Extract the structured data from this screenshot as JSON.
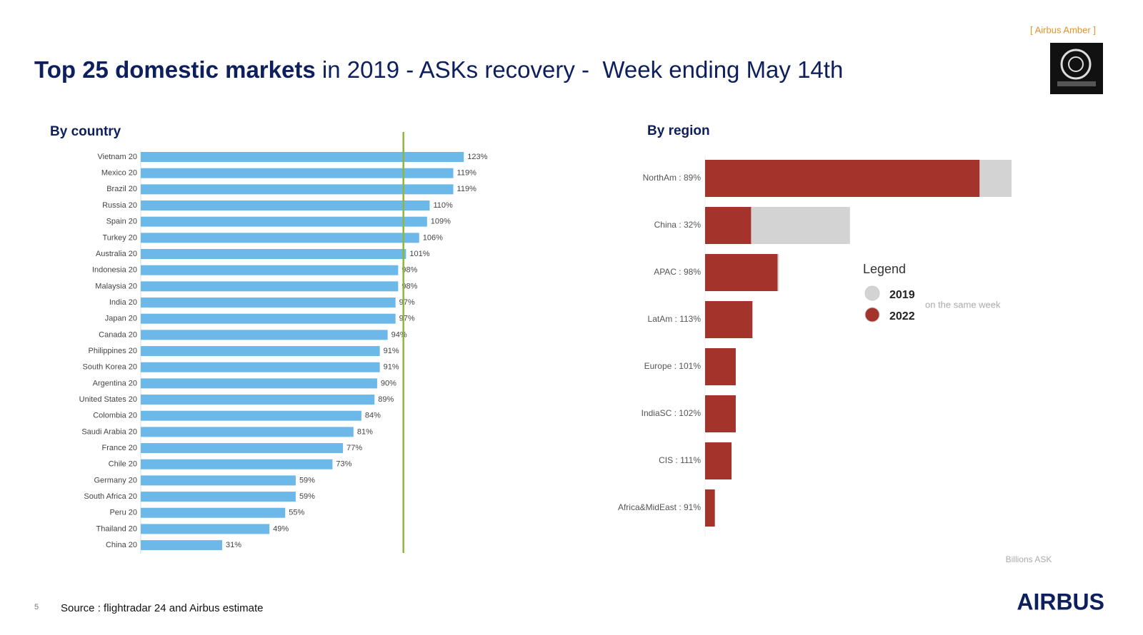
{
  "header": {
    "title_bold": "Top 25 domestic markets",
    "title_rest": " in 2019 - ASKs recovery -  Week ending May 14th",
    "tag": "[ Airbus Amber ]"
  },
  "chart_data": [
    {
      "type": "bar",
      "orientation": "horizontal",
      "title": "By country",
      "categories": [
        "Vietnam 20",
        "Mexico 20",
        "Brazil 20",
        "Russia 20",
        "Spain 20",
        "Turkey 20",
        "Australia 20",
        "Indonesia 20",
        "Malaysia 20",
        "India 20",
        "Japan 20",
        "Canada 20",
        "Philippines 20",
        "South Korea 20",
        "Argentina 20",
        "United States 20",
        "Colombia 20",
        "Saudi Arabia 20",
        "France 20",
        "Chile 20",
        "Germany 20",
        "South Africa 20",
        "Peru 20",
        "Thailand 20",
        "China 20"
      ],
      "values": [
        123,
        119,
        119,
        110,
        109,
        106,
        101,
        98,
        98,
        97,
        97,
        94,
        91,
        91,
        90,
        89,
        84,
        81,
        77,
        73,
        59,
        59,
        55,
        49,
        31
      ],
      "value_labels": [
        "123%",
        "119%",
        "119%",
        "110%",
        "109%",
        "106%",
        "101%",
        "98%",
        "98%",
        "97%",
        "97%",
        "94%",
        "91%",
        "91%",
        "90%",
        "89%",
        "84%",
        "81%",
        "77%",
        "73%",
        "59%",
        "59%",
        "55%",
        "49%",
        "31%"
      ],
      "color": "#6cb9e9",
      "xlim": [
        0,
        130
      ],
      "reference_line": 100,
      "reference_color": "#8cb83a"
    },
    {
      "type": "bar",
      "orientation": "horizontal",
      "overlap": true,
      "title": "By region",
      "categories": [
        "NorthAm : 89%",
        "China : 32%",
        "APAC : 98%",
        "LatAm : 113%",
        "Europe : 101%",
        "IndiaSC : 102%",
        "CIS : 111%",
        "Africa&MidEast : 91%"
      ],
      "series": [
        {
          "name": "2019",
          "color": "#d3d3d3",
          "values": [
            22,
            10.4,
            5.3,
            3.0,
            2.2,
            2.2,
            1.7,
            0.7
          ]
        },
        {
          "name": "2022",
          "color": "#a3332b",
          "values": [
            19.7,
            3.3,
            5.2,
            3.4,
            2.2,
            2.2,
            1.9,
            0.7
          ]
        }
      ],
      "xlim": [
        0,
        24
      ],
      "legend_title": "Legend",
      "legend_note": "on the same week",
      "unit_label": "Billions ASK"
    }
  ],
  "footer": {
    "page": "5",
    "source": "Source : flightradar 24 and Airbus estimate",
    "logo": "AIRBUS"
  }
}
